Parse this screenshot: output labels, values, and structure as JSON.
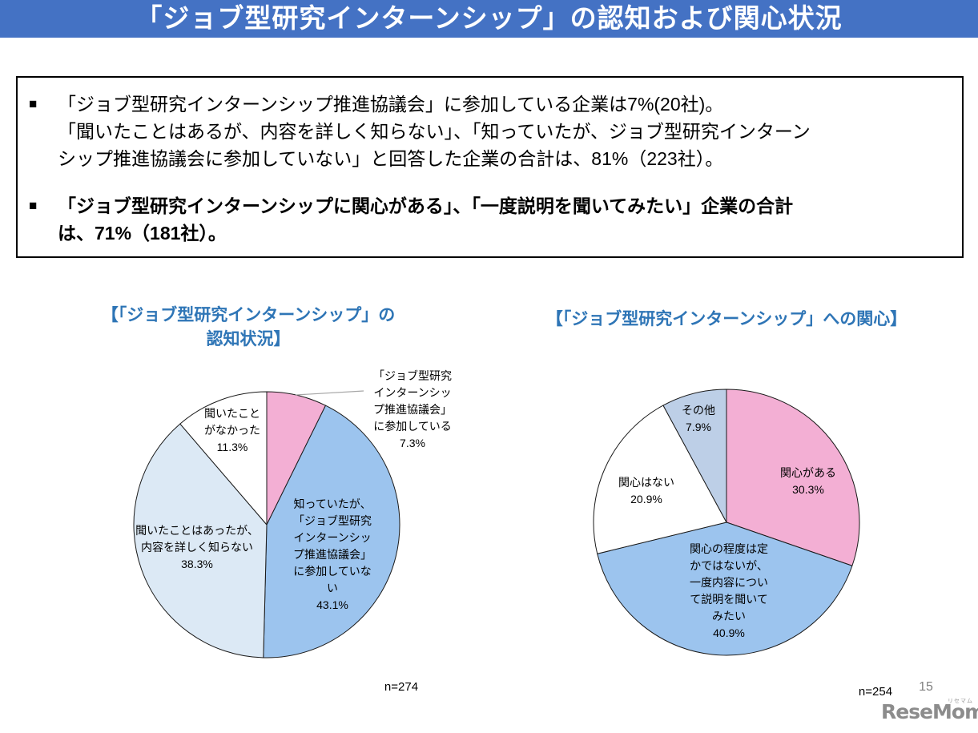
{
  "header": {
    "title": "「ジョブ型研究インターンシップ」の認知および関心状況"
  },
  "summary": {
    "marker": "■",
    "bullet1": "「ジョブ型研究インターンシップ推進協議会」に参加している企業は7%(20社)。\n「聞いたことはあるが、内容を詳しく知らない」、「知っていたが、ジョブ型研究インターン\nシップ推進協議会に参加していない」と回答した企業の合計は、81%（223社）。",
    "bullet2": "「ジョブ型研究インターンシップに関心がある」、「一度説明を聞いてみたい」企業の合計\nは、71%（181社）。"
  },
  "chart_data": [
    {
      "type": "pie",
      "title": "【「ジョブ型研究インターンシップ」の\n認知状況】",
      "n_label": "n=274",
      "start_angle_deg": 0,
      "direction": "clockwise",
      "stroke_color": "#1a1a1a",
      "slices": [
        {
          "label": "「ジョブ型研究インターンシップ推進協議会」に参加している",
          "value": 7.3,
          "color": "#F3AFD4",
          "label_placement": "outside",
          "display": "「ジョブ型研究\nインターンシッ\nプ推進協議会」\nに参加している\n7.3%"
        },
        {
          "label": "知っていたが、「ジョブ型研究インターンシップ推進協議会」に参加していない",
          "value": 43.1,
          "color": "#9CC4EE",
          "label_placement": "inside",
          "display": "知っていたが、\n「ジョブ型研究\nインターンシッ\nプ推進協議会」\nに参加していな\nい\n43.1%"
        },
        {
          "label": "聞いたことはあったが、内容を詳しく知らない",
          "value": 38.3,
          "color": "#DCE9F5",
          "label_placement": "inside",
          "display": "聞いたことはあったが、\n内容を詳しく知らない\n38.3%"
        },
        {
          "label": "聞いたことがなかった",
          "value": 11.3,
          "color": "#FFFFFF",
          "label_placement": "inside",
          "display": "聞いたこと\nがなかった\n11.3%"
        }
      ]
    },
    {
      "type": "pie",
      "title": "【「ジョブ型研究インターンシップ」への関心】",
      "n_label": "n=254",
      "start_angle_deg": 0,
      "direction": "clockwise",
      "stroke_color": "#1a1a1a",
      "slices": [
        {
          "label": "関心がある",
          "value": 30.3,
          "color": "#F3AFD4",
          "label_placement": "inside",
          "display": "関心がある\n30.3%"
        },
        {
          "label": "関心の程度は定かではないが、一度内容について説明を聞いてみたい",
          "value": 40.9,
          "color": "#9CC4EE",
          "label_placement": "inside",
          "display": "関心の程度は定\nかではないが、\n一度内容につい\nて説明を聞いて\nみたい\n40.9%"
        },
        {
          "label": "関心はない",
          "value": 20.9,
          "color": "#FFFFFF",
          "label_placement": "inside",
          "display": "関心はない\n20.9%"
        },
        {
          "label": "その他",
          "value": 7.9,
          "color": "#BDCFE7",
          "label_placement": "inside",
          "display": "その他\n7.9%"
        }
      ]
    }
  ],
  "footer": {
    "page_number": "15",
    "logo_text": "ReseMom.",
    "logo_ruby": "リセマム"
  },
  "colors": {
    "banner": "#4472C4",
    "chart_title": "#2E75B6",
    "pink": "#F3AFD4",
    "mid_blue": "#9CC4EE",
    "pale_blue": "#DCE9F5",
    "gray_blue": "#BDCFE7",
    "leader_line": "#A6A6A6",
    "page_number_gray": "#7F7F7F",
    "logo_gray": "#8C8C8C"
  }
}
